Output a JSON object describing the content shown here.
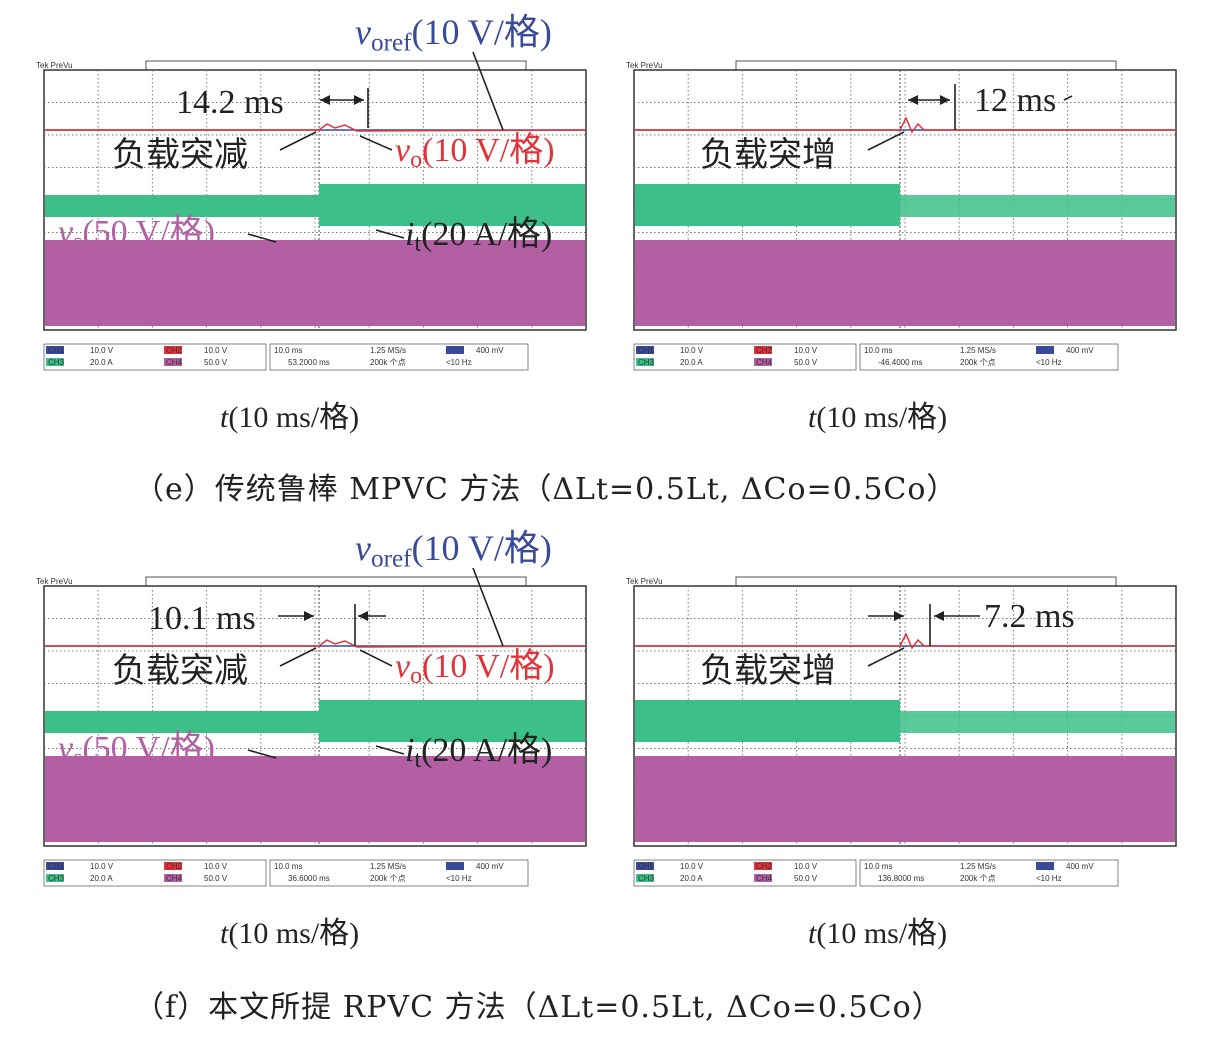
{
  "colors": {
    "ch1": "#3a4a9a",
    "ch2": "#e0333a",
    "ch3": "#3dbf8a",
    "ch4": "#b25fa3"
  },
  "scope_ui": {
    "brand": "Tek PreVu",
    "ch1": "CH1",
    "ch2": "CH2",
    "ch3": "CH3",
    "ch4": "CH4",
    "ch1_scale": "10.0 V",
    "ch2_scale": "10.0 V",
    "ch3_scale": "20.0 A",
    "ch4_scale": "50.0 V",
    "timebase": "10.0 ms",
    "sample_rate": "1.25 MS/s",
    "record": "200k 个点",
    "trig_level": "400 mV",
    "freq": "<10 Hz"
  },
  "labels": {
    "voref": "v",
    "voref_sub": "oref",
    "voref_scale": "(10 V/格)",
    "vo": "v",
    "vo_sub": "o",
    "vo_scale": "(10 V/格)",
    "vs": "v",
    "vs_sub": "s",
    "vs_scale": "(50 V/格)",
    "it": "i",
    "it_sub": "t",
    "it_scale": "(20 A/格)",
    "load_dec": "负载突减",
    "load_inc": "负载突增",
    "xaxis_t": "t",
    "xaxis": "(10 ms/格)"
  },
  "panels": {
    "e_left": {
      "time": "14.2 ms",
      "trig_pos": "53.2000 ms"
    },
    "e_right": {
      "time": "12 ms",
      "trig_pos": "-46.4000 ms"
    },
    "f_left": {
      "time": "10.1 ms",
      "trig_pos": "36.6000 ms"
    },
    "f_right": {
      "time": "7.2 ms",
      "trig_pos": "136.8000 ms"
    }
  },
  "captions": {
    "e": "（e）传统鲁棒 MPVC 方法（ΔLt=0.5Lt, ΔCo=0.5Co）",
    "f": "（f）本文所提 RPVC 方法（ΔLt=0.5Lt, ΔCo=0.5Co）"
  }
}
